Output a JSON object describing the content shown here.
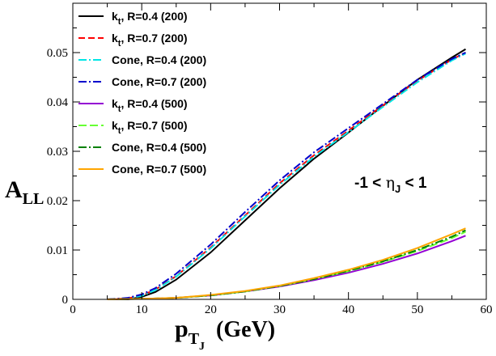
{
  "chart_data": {
    "type": "line",
    "title": "",
    "xlabel": "p_{T_J} (GeV)",
    "xlabel_main": "p",
    "xlabel_sub": "T",
    "xlabel_subsub": "J",
    "xlabel_unit": "(GeV)",
    "ylabel": "A_{LL}",
    "ylabel_main": "A",
    "ylabel_sub": "LL",
    "xlim": [
      0,
      60
    ],
    "ylim": [
      0,
      0.06
    ],
    "xticks": [
      0,
      10,
      20,
      30,
      40,
      50,
      60
    ],
    "xtick_labels": [
      "0",
      "10",
      "20",
      "30",
      "40",
      "50",
      "60"
    ],
    "yticks": [
      0,
      0.01,
      0.02,
      0.03,
      0.04,
      0.05
    ],
    "ytick_labels": [
      "0",
      "0.01",
      "0.02",
      "0.03",
      "0.04",
      "0.05"
    ],
    "grid": false,
    "legend_position": "top-left",
    "annotation": {
      "pre": "-1 < ",
      "eta": "η",
      "sub": "J",
      "post": " < 1"
    },
    "series": [
      {
        "name": "k_t, R=0.4 (200)",
        "name_main": "k",
        "name_sub": "t",
        "name_rest": ", R=0.4 (200)",
        "color": "#000000",
        "dash": "solid",
        "x": [
          5,
          8,
          10,
          12,
          15,
          20,
          25,
          30,
          35,
          40,
          45,
          50,
          55,
          57
        ],
        "y": [
          0.0,
          0.0,
          0.0005,
          0.0015,
          0.004,
          0.0095,
          0.016,
          0.0225,
          0.0285,
          0.0338,
          0.0392,
          0.0445,
          0.049,
          0.0507
        ]
      },
      {
        "name": "k_t, R=0.7 (200)",
        "name_main": "k",
        "name_sub": "t",
        "name_rest": ", R=0.7 (200)",
        "color": "#ff0000",
        "dash": "8,4",
        "x": [
          5,
          8,
          10,
          12,
          15,
          20,
          25,
          30,
          35,
          40,
          45,
          50,
          55,
          57
        ],
        "y": [
          0.0,
          0.0002,
          0.0008,
          0.002,
          0.0047,
          0.0105,
          0.017,
          0.0235,
          0.0292,
          0.0342,
          0.0393,
          0.0443,
          0.0486,
          0.05
        ]
      },
      {
        "name": "Cone, R=0.4 (200)",
        "name_main": "Cone, R=0.4 (200)",
        "name_sub": "",
        "name_rest": "",
        "color": "#00e5e5",
        "dash": "10,3,2,3",
        "x": [
          5,
          8,
          10,
          12,
          15,
          20,
          25,
          30,
          35,
          40,
          45,
          50,
          55,
          57
        ],
        "y": [
          0.0,
          0.0002,
          0.0007,
          0.0019,
          0.0046,
          0.0103,
          0.0168,
          0.0232,
          0.0289,
          0.0339,
          0.039,
          0.044,
          0.0484,
          0.0498
        ]
      },
      {
        "name": "Cone, R=0.7 (200)",
        "name_main": "Cone, R=0.7 (200)",
        "name_sub": "",
        "name_rest": "",
        "color": "#0000cc",
        "dash": "10,3,2,3",
        "x": [
          5,
          8,
          10,
          12,
          15,
          20,
          25,
          30,
          35,
          40,
          45,
          50,
          55,
          57
        ],
        "y": [
          0.0,
          0.0003,
          0.001,
          0.0023,
          0.0052,
          0.0111,
          0.0177,
          0.0241,
          0.0298,
          0.0347,
          0.0396,
          0.0445,
          0.0487,
          0.05
        ]
      },
      {
        "name": "k_t, R=0.4 (500)",
        "name_main": "k",
        "name_sub": "t",
        "name_rest": ", R=0.4 (500)",
        "color": "#9400d3",
        "dash": "solid",
        "x": [
          5,
          10,
          15,
          20,
          25,
          30,
          35,
          40,
          45,
          50,
          55,
          57
        ],
        "y": [
          0.0,
          0.0001,
          0.0003,
          0.0008,
          0.0016,
          0.0026,
          0.0039,
          0.0054,
          0.0072,
          0.0093,
          0.0118,
          0.0129
        ]
      },
      {
        "name": "k_t, R=0.7 (500)",
        "name_main": "k",
        "name_sub": "t",
        "name_rest": ", R=0.7 (500)",
        "color": "#66ff33",
        "dash": "10,4",
        "x": [
          5,
          10,
          15,
          20,
          25,
          30,
          35,
          40,
          45,
          50,
          55,
          57
        ],
        "y": [
          0.0,
          0.0001,
          0.0003,
          0.0008,
          0.0016,
          0.0027,
          0.0041,
          0.0057,
          0.0076,
          0.0098,
          0.0124,
          0.0137
        ]
      },
      {
        "name": "Cone, R=0.4 (500)",
        "name_main": "Cone, R=0.4 (500)",
        "name_sub": "",
        "name_rest": "",
        "color": "#008000",
        "dash": "10,3,2,3",
        "x": [
          5,
          10,
          15,
          20,
          25,
          30,
          35,
          40,
          45,
          50,
          55,
          57
        ],
        "y": [
          0.0,
          0.0001,
          0.0003,
          0.0008,
          0.0016,
          0.0027,
          0.0041,
          0.0058,
          0.0077,
          0.01,
          0.0127,
          0.014
        ]
      },
      {
        "name": "Cone, R=0.7 (500)",
        "name_main": "Cone, R=0.7 (500)",
        "name_sub": "",
        "name_rest": "",
        "color": "#ffa500",
        "dash": "solid",
        "x": [
          5,
          10,
          15,
          20,
          25,
          30,
          35,
          40,
          45,
          50,
          55,
          57
        ],
        "y": [
          0.0,
          0.0001,
          0.0003,
          0.0009,
          0.0017,
          0.0028,
          0.0043,
          0.006,
          0.008,
          0.0104,
          0.0132,
          0.0144
        ]
      }
    ]
  }
}
